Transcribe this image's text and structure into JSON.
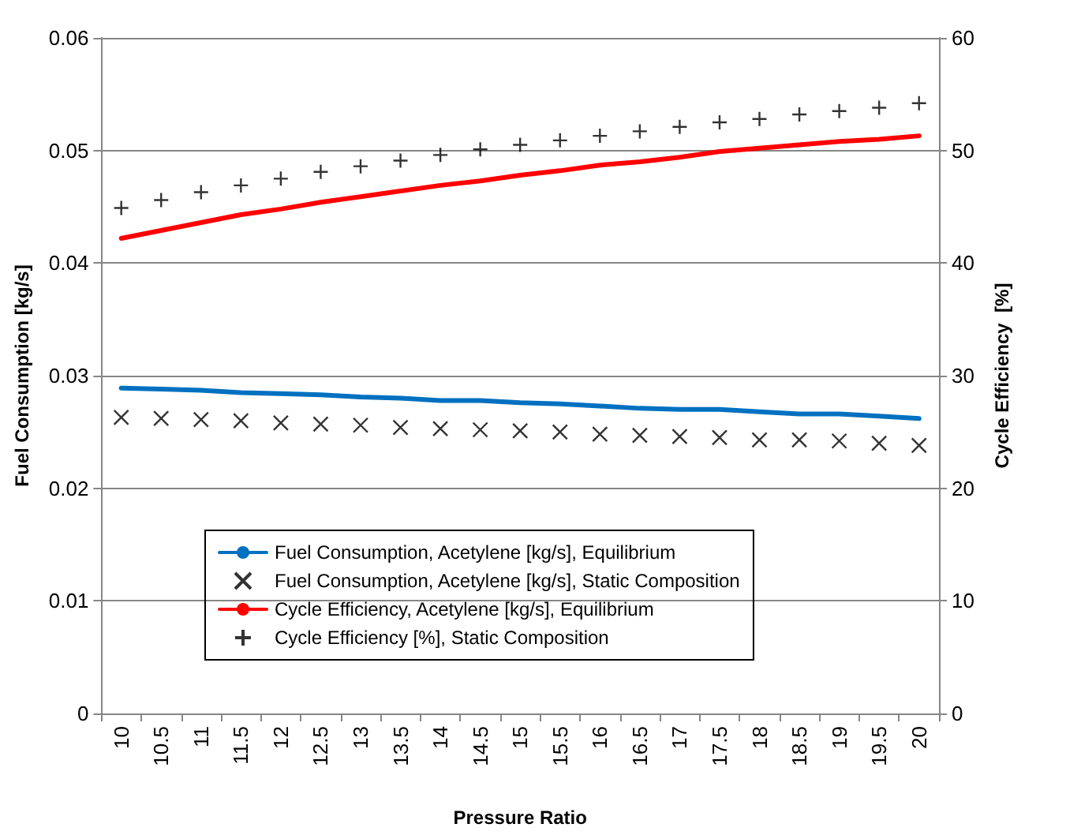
{
  "chart_data": {
    "type": "line",
    "xlabel": "Pressure Ratio",
    "ylabel": "Fuel Consumption [kg/s]",
    "y2label": "Cycle Efficiency  [%]",
    "categories": [
      "10",
      "10.5",
      "11",
      "11.5",
      "12",
      "12.5",
      "13",
      "13.5",
      "14",
      "14.5",
      "15",
      "15.5",
      "16",
      "16.5",
      "17",
      "17.5",
      "18",
      "18.5",
      "19",
      "19.5",
      "20"
    ],
    "series": [
      {
        "name": "Fuel Consumption, Acetylene [kg/s], Equilibrium",
        "color": "#0070c0",
        "values": [
          0.0289,
          0.0288,
          0.0287,
          0.0285,
          0.0284,
          0.0283,
          0.0281,
          0.028,
          0.0278,
          0.0278,
          0.0276,
          0.0275,
          0.0273,
          0.0271,
          0.027,
          0.027,
          0.0268,
          0.0266,
          0.0266,
          0.0264,
          0.0262
        ]
      },
      {
        "name": "Fuel Consumption, Acetylene [kg/s], Static Composition",
        "type": "scatter",
        "marker": "cross",
        "color": "#000000",
        "values": [
          0.0263,
          0.0262,
          0.0261,
          0.026,
          0.0258,
          0.0257,
          0.0256,
          0.0254,
          0.0253,
          0.0252,
          0.0251,
          0.025,
          0.0248,
          0.0247,
          0.0246,
          0.0245,
          0.0243,
          0.0243,
          0.0242,
          0.024,
          0.0238
        ]
      },
      {
        "name": "Cycle Efficiency, Acetylene [kg/s], Equilibrium",
        "axis": "y2",
        "color": "#ff0000",
        "values": [
          42.2,
          42.9,
          43.6,
          44.3,
          44.8,
          45.4,
          45.9,
          46.4,
          46.9,
          47.3,
          47.8,
          48.2,
          48.7,
          49.0,
          49.4,
          49.9,
          50.2,
          50.5,
          50.8,
          51.0,
          51.3
        ]
      },
      {
        "name": "Cycle Efficiency [%], Static Composition",
        "type": "scatter",
        "marker": "plus",
        "axis": "y2",
        "color": "#000000",
        "values": [
          44.9,
          45.6,
          46.3,
          46.9,
          47.5,
          48.1,
          48.6,
          49.1,
          49.6,
          50.1,
          50.5,
          50.9,
          51.3,
          51.7,
          52.1,
          52.5,
          52.8,
          53.2,
          53.5,
          53.8,
          54.2
        ]
      }
    ],
    "ylim": [
      0,
      0.06
    ],
    "yticks": [
      0,
      0.01,
      0.02,
      0.03,
      0.04,
      0.05,
      0.06
    ],
    "y2lim": [
      0,
      60
    ],
    "y2ticks": [
      0,
      10,
      20,
      30,
      40,
      50,
      60
    ],
    "grid": "y",
    "legend": "bottom"
  }
}
